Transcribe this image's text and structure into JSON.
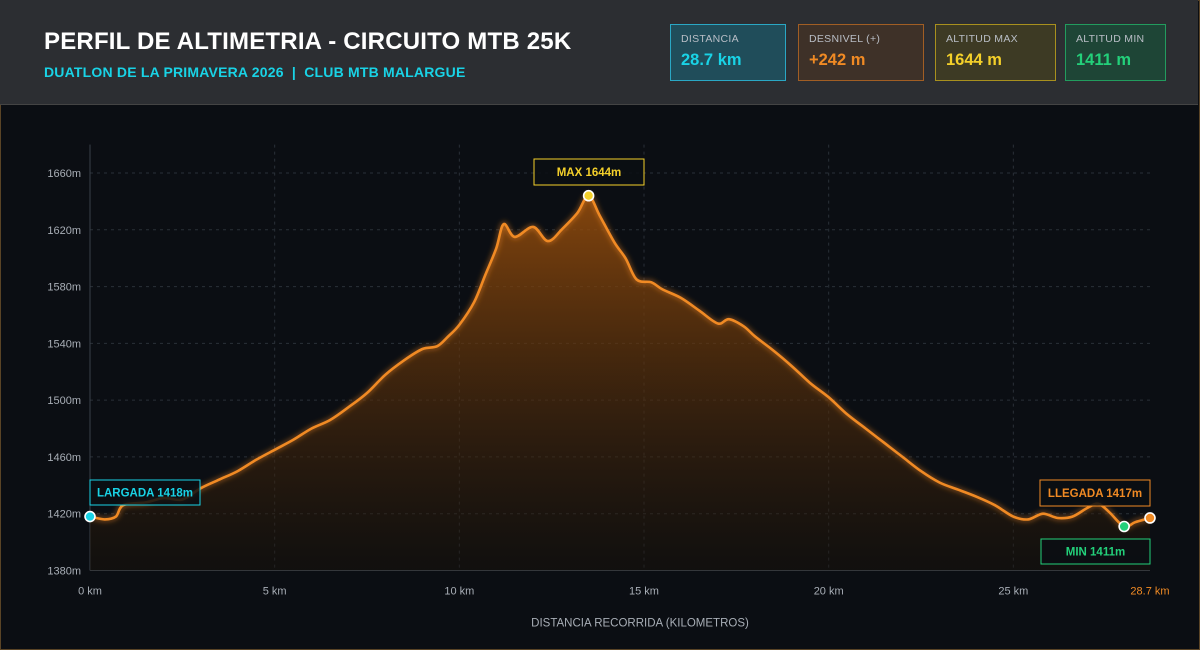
{
  "header": {
    "title": "PERFIL DE ALTIMETRIA - CIRCUITO MTB 25K",
    "subtitle": "DUATLON DE LA PRIMAVERA 2026  |  CLUB MTB MALARGUE"
  },
  "stats": [
    {
      "label": "DISTANCIA",
      "value": "28.7 km",
      "color": "#19d3e6"
    },
    {
      "label": "DESNIVEL (+)",
      "value": "+242 m",
      "color": "#f08a24"
    },
    {
      "label": "ALTITUD MAX",
      "value": "1644 m",
      "color": "#f4d02a"
    },
    {
      "label": "ALTITUD MIN",
      "value": "1411 m",
      "color": "#23d07a"
    }
  ],
  "chart_data": {
    "type": "area",
    "title": "",
    "xlabel": "DISTANCIA RECORRIDA (KILOMETROS)",
    "ylabel": "",
    "xlim": [
      0,
      28.7
    ],
    "ylim": [
      1380,
      1680
    ],
    "x_ticks": [
      0,
      5,
      10,
      15,
      20,
      25
    ],
    "x_tick_labels": [
      "0 km",
      "5 km",
      "10 km",
      "15 km",
      "20 km",
      "25 km"
    ],
    "x_end_label": "28.7 km",
    "y_ticks": [
      1380,
      1420,
      1460,
      1500,
      1540,
      1580,
      1620,
      1660
    ],
    "y_tick_labels": [
      "1380m",
      "1420m",
      "1460m",
      "1500m",
      "1540m",
      "1580m",
      "1620m",
      "1660m"
    ],
    "grid": true,
    "line_color": "#f08a24",
    "series": [
      {
        "x": [
          0,
          0.4,
          0.7,
          0.9,
          1.5,
          2.0,
          2.5,
          3.0,
          3.5,
          4.0,
          4.5,
          5.0,
          5.5,
          6.0,
          6.5,
          7.0,
          7.5,
          8.0,
          8.5,
          9.0,
          9.4,
          9.7,
          10.0,
          10.4,
          10.7,
          11.0,
          11.2,
          11.5,
          12.0,
          12.4,
          12.8,
          13.2,
          13.5,
          13.8,
          14.2,
          14.5,
          14.8,
          15.2,
          15.5,
          16.0,
          16.5,
          17.0,
          17.3,
          17.7,
          18.0,
          18.5,
          19.0,
          19.5,
          20.0,
          20.5,
          21.0,
          21.5,
          22.0,
          22.5,
          23.0,
          23.5,
          24.0,
          24.5,
          25.0,
          25.4,
          25.8,
          26.2,
          26.6,
          27.0,
          27.3,
          27.6,
          28.0,
          28.3,
          28.7
        ],
        "y": [
          1418,
          1416,
          1418,
          1426,
          1428,
          1431,
          1430,
          1438,
          1444,
          1450,
          1458,
          1465,
          1472,
          1480,
          1486,
          1495,
          1505,
          1518,
          1528,
          1536,
          1538,
          1545,
          1553,
          1569,
          1588,
          1607,
          1624,
          1615,
          1622,
          1612,
          1621,
          1632,
          1644,
          1630,
          1611,
          1600,
          1585,
          1583,
          1578,
          1572,
          1563,
          1554,
          1557,
          1552,
          1545,
          1535,
          1524,
          1512,
          1502,
          1490,
          1480,
          1470,
          1460,
          1450,
          1442,
          1437,
          1432,
          1426,
          1418,
          1416,
          1420,
          1417,
          1418,
          1424,
          1427,
          1421,
          1411,
          1414,
          1417
        ]
      }
    ],
    "annotations": [
      {
        "text": "MAX 1644m",
        "x": 13.5,
        "y": 1644,
        "color": "#f4d02a"
      },
      {
        "text": "LARGADA 1418m",
        "x": 0,
        "y": 1418,
        "color": "#19d3e6"
      },
      {
        "text": "LLEGADA 1417m",
        "x": 28.7,
        "y": 1417,
        "color": "#f08a24"
      },
      {
        "text": "MIN 1411m",
        "x": 28.0,
        "y": 1411,
        "color": "#23d07a"
      }
    ]
  }
}
